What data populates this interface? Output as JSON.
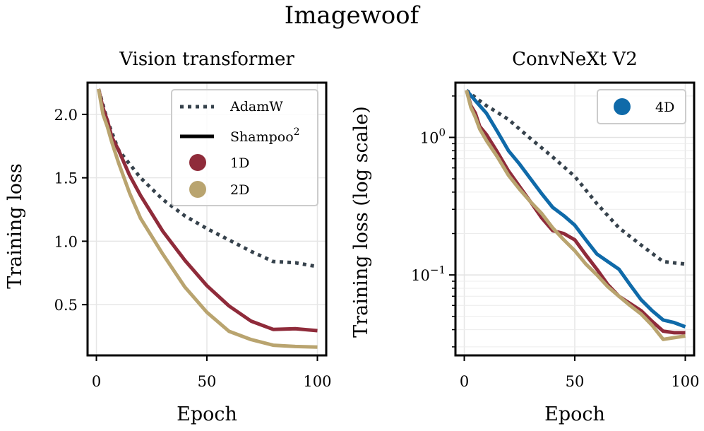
{
  "figure_title": "Imagewoof",
  "chart_data": [
    {
      "type": "line",
      "title": "Vision transformer",
      "xlabel": "Epoch",
      "ylabel": "Training loss",
      "yscale": "linear",
      "xlim": [
        -4,
        104
      ],
      "ylim": [
        0.1,
        2.25
      ],
      "xticks": [
        0,
        50,
        100
      ],
      "xtick_labels": [
        "0",
        "50",
        "100"
      ],
      "yticks": [
        0.5,
        1.0,
        1.5,
        2.0
      ],
      "ytick_labels": [
        "0.5",
        "1.0",
        "1.5",
        "2.0"
      ],
      "grid": true,
      "legend_position": "top-right",
      "legend": {
        "optimizers": [
          {
            "label": "AdamW",
            "style": "dotted"
          },
          {
            "label_base": "Shampoo",
            "label_sup": "2",
            "style": "solid"
          }
        ],
        "variants": [
          {
            "label": "1D",
            "color": "#8f2b3a"
          },
          {
            "label": "2D",
            "color": "#b9a46f"
          }
        ]
      },
      "series": [
        {
          "name": "AdamW",
          "style": "dotted",
          "color": "#36424c",
          "x": [
            1,
            5,
            10,
            20,
            30,
            40,
            50,
            60,
            70,
            80,
            90,
            100
          ],
          "values": [
            2.2,
            1.95,
            1.72,
            1.5,
            1.33,
            1.2,
            1.1,
            1.01,
            0.92,
            0.84,
            0.83,
            0.8
          ]
        },
        {
          "name": "1D",
          "style": "solid",
          "color": "#8f2b3a",
          "x": [
            1,
            3,
            5,
            7,
            10,
            15,
            20,
            30,
            40,
            50,
            60,
            70,
            80,
            90,
            100
          ],
          "values": [
            2.2,
            2.05,
            1.95,
            1.82,
            1.72,
            1.52,
            1.36,
            1.08,
            0.85,
            0.65,
            0.49,
            0.37,
            0.305,
            0.31,
            0.295
          ]
        },
        {
          "name": "2D",
          "style": "solid",
          "color": "#b9a46f",
          "x": [
            1,
            3,
            5,
            7,
            10,
            15,
            20,
            30,
            40,
            50,
            60,
            70,
            80,
            90,
            100
          ],
          "values": [
            2.2,
            2.0,
            1.9,
            1.78,
            1.62,
            1.38,
            1.18,
            0.9,
            0.64,
            0.44,
            0.29,
            0.225,
            0.18,
            0.17,
            0.165
          ]
        }
      ]
    },
    {
      "type": "line",
      "title": "ConvNeXt V2",
      "xlabel": "Epoch",
      "ylabel": "Training loss (log scale)",
      "yscale": "log",
      "xlim": [
        -4,
        104
      ],
      "ylim": [
        0.026,
        2.5
      ],
      "xticks": [
        0,
        50,
        100
      ],
      "xtick_labels": [
        "0",
        "50",
        "100"
      ],
      "ytick_major": [
        {
          "value": 1,
          "base": "10",
          "exp": "0"
        },
        {
          "value": 0.1,
          "base": "10",
          "exp": "−1"
        }
      ],
      "grid": true,
      "legend_position": "top-right",
      "legend": {
        "variants": [
          {
            "label": "4D",
            "color": "#0f6aa9"
          }
        ]
      },
      "series": [
        {
          "name": "AdamW",
          "style": "dotted",
          "color": "#36424c",
          "x": [
            1,
            5,
            10,
            15,
            20,
            30,
            40,
            50,
            60,
            70,
            80,
            90,
            100
          ],
          "values": [
            2.2,
            1.95,
            1.7,
            1.52,
            1.35,
            0.98,
            0.72,
            0.52,
            0.33,
            0.22,
            0.165,
            0.125,
            0.12
          ]
        },
        {
          "name": "4D",
          "style": "solid",
          "color": "#0f6aa9",
          "x": [
            1,
            5,
            10,
            15,
            20,
            25,
            30,
            35,
            40,
            45,
            50,
            55,
            60,
            65,
            70,
            75,
            80,
            85,
            90,
            95,
            100
          ],
          "values": [
            2.2,
            1.85,
            1.5,
            1.1,
            0.8,
            0.64,
            0.5,
            0.39,
            0.31,
            0.27,
            0.23,
            0.18,
            0.142,
            0.125,
            0.11,
            0.085,
            0.066,
            0.055,
            0.047,
            0.045,
            0.042
          ]
        },
        {
          "name": "1D",
          "style": "solid",
          "color": "#8f2b3a",
          "x": [
            1,
            3,
            5,
            7,
            10,
            15,
            20,
            25,
            30,
            35,
            40,
            45,
            50,
            55,
            60,
            65,
            70,
            75,
            80,
            85,
            90,
            95,
            100
          ],
          "values": [
            2.2,
            1.7,
            1.5,
            1.2,
            1.05,
            0.78,
            0.57,
            0.44,
            0.34,
            0.26,
            0.21,
            0.2,
            0.18,
            0.14,
            0.11,
            0.085,
            0.07,
            0.062,
            0.055,
            0.046,
            0.039,
            0.038,
            0.038
          ]
        },
        {
          "name": "2D",
          "style": "solid",
          "color": "#b9a46f",
          "x": [
            1,
            3,
            5,
            7,
            10,
            15,
            20,
            25,
            30,
            35,
            40,
            45,
            50,
            55,
            60,
            65,
            70,
            75,
            80,
            85,
            90,
            95,
            100
          ],
          "values": [
            2.2,
            1.65,
            1.4,
            1.15,
            0.95,
            0.72,
            0.53,
            0.42,
            0.34,
            0.28,
            0.22,
            0.18,
            0.15,
            0.12,
            0.1,
            0.082,
            0.07,
            0.06,
            0.052,
            0.043,
            0.034,
            0.035,
            0.036
          ]
        }
      ]
    }
  ]
}
